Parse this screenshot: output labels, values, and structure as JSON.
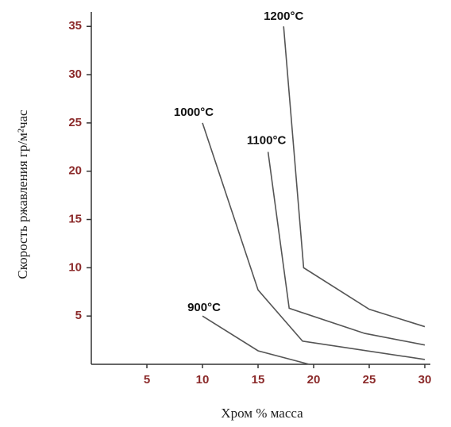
{
  "chart_data": {
    "type": "line",
    "x_label": "Хром % масса",
    "y_label": "Скорость ржавления гр/м²час",
    "xlim": [
      0,
      30.5
    ],
    "ylim": [
      0,
      36.5
    ],
    "xticks": [
      5,
      10,
      15,
      20,
      25,
      30
    ],
    "yticks": [
      5,
      10,
      15,
      20,
      25,
      30,
      35
    ],
    "series": [
      {
        "name": "1200°C",
        "color": "#555555",
        "x": [
          17.3,
          19.1,
          25,
          30
        ],
        "values": [
          35,
          10,
          5.7,
          3.9
        ]
      },
      {
        "name": "1100°C",
        "color": "#555555",
        "x": [
          15.9,
          17.8,
          24.6,
          30
        ],
        "values": [
          22,
          5.8,
          3.2,
          2
        ]
      },
      {
        "name": "1000°C",
        "color": "#555555",
        "x": [
          10,
          15,
          19,
          30
        ],
        "values": [
          25,
          7.7,
          2.4,
          0.5
        ]
      },
      {
        "name": "900°C",
        "color": "#555555",
        "x": [
          10,
          15,
          19.6
        ],
        "values": [
          5,
          1.4,
          0
        ]
      }
    ]
  }
}
